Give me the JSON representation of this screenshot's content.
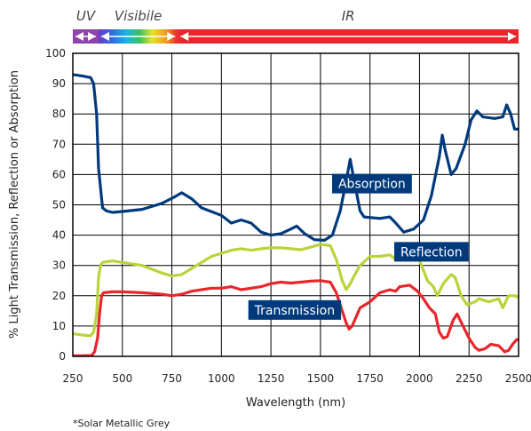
{
  "chart_data": {
    "type": "line",
    "xlabel": "Wavelength (nm)",
    "ylabel": "% Light Transmission, Reflection or Absorption",
    "xlim": [
      250,
      2500
    ],
    "ylim": [
      0,
      100
    ],
    "xticks": [
      250,
      500,
      750,
      1000,
      1250,
      1500,
      1750,
      2000,
      2250,
      2500
    ],
    "yticks": [
      0,
      10,
      20,
      30,
      40,
      50,
      60,
      70,
      80,
      90,
      100
    ],
    "grid": true,
    "spectrum_bands": [
      {
        "label": "UV",
        "start": 250,
        "end": 380,
        "color": "#8e44ad"
      },
      {
        "label": "Visibile",
        "start": 380,
        "end": 780,
        "color": "rainbow"
      },
      {
        "label": "IR",
        "start": 780,
        "end": 2500,
        "color": "#e8262b"
      }
    ],
    "series": [
      {
        "name": "Absorption",
        "color": "#003a7d",
        "label_at": [
          1760,
          57
        ],
        "points": [
          [
            250,
            93
          ],
          [
            300,
            92.5
          ],
          [
            340,
            92
          ],
          [
            355,
            90
          ],
          [
            370,
            80
          ],
          [
            380,
            62
          ],
          [
            400,
            49
          ],
          [
            420,
            48
          ],
          [
            450,
            47.5
          ],
          [
            500,
            47.8
          ],
          [
            600,
            48.5
          ],
          [
            700,
            50.5
          ],
          [
            760,
            52.5
          ],
          [
            800,
            54
          ],
          [
            850,
            52
          ],
          [
            900,
            49
          ],
          [
            1000,
            46.5
          ],
          [
            1050,
            44
          ],
          [
            1100,
            45
          ],
          [
            1150,
            44
          ],
          [
            1200,
            41
          ],
          [
            1250,
            40
          ],
          [
            1300,
            40.5
          ],
          [
            1350,
            42
          ],
          [
            1380,
            43
          ],
          [
            1420,
            40.5
          ],
          [
            1470,
            38.5
          ],
          [
            1520,
            38.3
          ],
          [
            1560,
            40
          ],
          [
            1600,
            48
          ],
          [
            1630,
            58
          ],
          [
            1650,
            65
          ],
          [
            1670,
            58
          ],
          [
            1700,
            48
          ],
          [
            1720,
            46
          ],
          [
            1800,
            45.5
          ],
          [
            1850,
            46
          ],
          [
            1880,
            44
          ],
          [
            1920,
            41
          ],
          [
            1970,
            42
          ],
          [
            2020,
            45
          ],
          [
            2060,
            53
          ],
          [
            2100,
            66
          ],
          [
            2115,
            73
          ],
          [
            2130,
            68
          ],
          [
            2160,
            60
          ],
          [
            2185,
            62
          ],
          [
            2230,
            70
          ],
          [
            2260,
            78
          ],
          [
            2290,
            81
          ],
          [
            2320,
            79
          ],
          [
            2380,
            78.5
          ],
          [
            2420,
            79
          ],
          [
            2440,
            83
          ],
          [
            2460,
            80
          ],
          [
            2480,
            75
          ],
          [
            2500,
            75
          ]
        ]
      },
      {
        "name": "Reflection",
        "color": "#b9d43a",
        "label_at": [
          2060,
          34.5
        ],
        "points": [
          [
            250,
            7.5
          ],
          [
            300,
            7
          ],
          [
            340,
            6.8
          ],
          [
            355,
            8
          ],
          [
            370,
            14
          ],
          [
            380,
            26
          ],
          [
            390,
            30
          ],
          [
            400,
            31
          ],
          [
            450,
            31.5
          ],
          [
            500,
            31
          ],
          [
            600,
            30
          ],
          [
            700,
            27.5
          ],
          [
            750,
            26.5
          ],
          [
            800,
            27
          ],
          [
            850,
            29
          ],
          [
            900,
            31
          ],
          [
            950,
            33
          ],
          [
            1000,
            34
          ],
          [
            1050,
            35
          ],
          [
            1100,
            35.5
          ],
          [
            1150,
            35
          ],
          [
            1200,
            35.5
          ],
          [
            1250,
            35.8
          ],
          [
            1300,
            35.8
          ],
          [
            1350,
            35.5
          ],
          [
            1400,
            35.2
          ],
          [
            1450,
            36
          ],
          [
            1500,
            37
          ],
          [
            1550,
            36.5
          ],
          [
            1580,
            32
          ],
          [
            1610,
            25
          ],
          [
            1630,
            22
          ],
          [
            1650,
            24
          ],
          [
            1670,
            26.5
          ],
          [
            1700,
            30
          ],
          [
            1750,
            33
          ],
          [
            1800,
            33
          ],
          [
            1850,
            33.5
          ],
          [
            1880,
            32
          ],
          [
            1910,
            35
          ],
          [
            1950,
            36
          ],
          [
            1990,
            33
          ],
          [
            2010,
            30
          ],
          [
            2040,
            25
          ],
          [
            2070,
            23
          ],
          [
            2090,
            20
          ],
          [
            2120,
            24
          ],
          [
            2160,
            27
          ],
          [
            2180,
            26
          ],
          [
            2210,
            20
          ],
          [
            2240,
            17
          ],
          [
            2280,
            18
          ],
          [
            2300,
            19
          ],
          [
            2350,
            18
          ],
          [
            2400,
            19
          ],
          [
            2420,
            16
          ],
          [
            2450,
            20
          ],
          [
            2480,
            20
          ],
          [
            2500,
            19.5
          ]
        ]
      },
      {
        "name": "Transmission",
        "color": "#e8262b",
        "label_at": [
          1370,
          15.3
        ],
        "points": [
          [
            250,
            0.2
          ],
          [
            300,
            0.2
          ],
          [
            345,
            0.3
          ],
          [
            360,
            1.5
          ],
          [
            375,
            6
          ],
          [
            385,
            14
          ],
          [
            395,
            20
          ],
          [
            405,
            21
          ],
          [
            450,
            21.3
          ],
          [
            500,
            21.3
          ],
          [
            600,
            21
          ],
          [
            700,
            20.5
          ],
          [
            750,
            20
          ],
          [
            800,
            20.5
          ],
          [
            850,
            21.5
          ],
          [
            900,
            22
          ],
          [
            950,
            22.5
          ],
          [
            1000,
            22.5
          ],
          [
            1050,
            23
          ],
          [
            1100,
            22
          ],
          [
            1150,
            22.5
          ],
          [
            1200,
            23
          ],
          [
            1250,
            24
          ],
          [
            1300,
            24.5
          ],
          [
            1350,
            24.2
          ],
          [
            1400,
            24.5
          ],
          [
            1450,
            24.8
          ],
          [
            1500,
            25
          ],
          [
            1550,
            24.5
          ],
          [
            1580,
            21
          ],
          [
            1610,
            15
          ],
          [
            1630,
            11
          ],
          [
            1645,
            9
          ],
          [
            1660,
            10
          ],
          [
            1680,
            13
          ],
          [
            1700,
            16
          ],
          [
            1750,
            18
          ],
          [
            1800,
            21
          ],
          [
            1850,
            22
          ],
          [
            1880,
            21.5
          ],
          [
            1900,
            23
          ],
          [
            1950,
            23.5
          ],
          [
            1990,
            21.5
          ],
          [
            2020,
            19
          ],
          [
            2050,
            16
          ],
          [
            2080,
            14
          ],
          [
            2100,
            8
          ],
          [
            2120,
            6
          ],
          [
            2140,
            6.5
          ],
          [
            2170,
            12
          ],
          [
            2190,
            14
          ],
          [
            2220,
            10
          ],
          [
            2250,
            6
          ],
          [
            2280,
            3
          ],
          [
            2300,
            2
          ],
          [
            2330,
            2.5
          ],
          [
            2360,
            4
          ],
          [
            2400,
            3.5
          ],
          [
            2430,
            1.5
          ],
          [
            2450,
            2
          ],
          [
            2470,
            4
          ],
          [
            2490,
            5.5
          ],
          [
            2500,
            5.5
          ]
        ]
      }
    ]
  },
  "footnote": "*Solar Metallic Grey"
}
